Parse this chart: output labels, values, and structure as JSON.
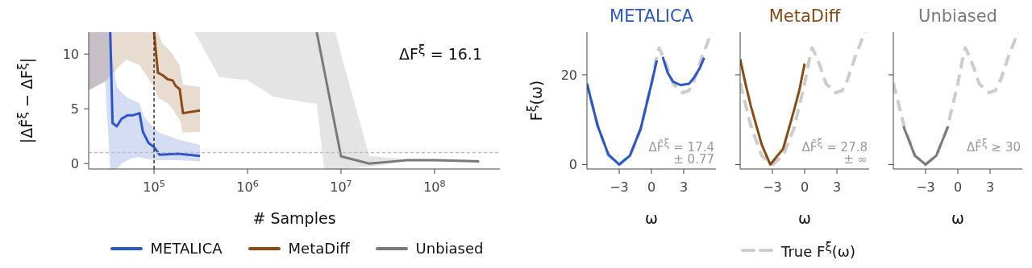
{
  "chart_data": [
    {
      "type": "line",
      "xlabel": "# Samples",
      "ylabel": "|ΔF̂$^{ξ}$ − ΔF$^{ξ}$|",
      "log": "x",
      "xlim": [
        20000,
        500000000
      ],
      "xticks": [
        {
          "value": 100000,
          "label": "10$^{5}$"
        },
        {
          "value": 1000000,
          "label": "10$^{6}$"
        },
        {
          "value": 10000000,
          "label": "10$^{7}$"
        },
        {
          "value": 100000000,
          "label": "10$^{8}$"
        }
      ],
      "ylim": [
        -0.5,
        12
      ],
      "yticks": [
        0,
        5,
        10
      ],
      "legend": "bottom",
      "annotations": [
        "ΔF$^{ξ}$ = 16.1"
      ],
      "ref_lines": [
        {
          "axis": "x",
          "value": 100000,
          "color": "#333333",
          "line_style": "dashed"
        },
        {
          "axis": "y",
          "value": 1,
          "color": "#bbbbbb",
          "line_style": "dashed"
        }
      ],
      "series": [
        {
          "name": "METALICA",
          "color": "#2b56c9",
          "x": [
            20000,
            30000,
            34000,
            36000,
            40000,
            45000,
            52000,
            59000,
            70000,
            76000,
            87000,
            100000,
            115000,
            180000,
            310000
          ],
          "values": [
            null,
            null,
            12,
            3.7,
            3.4,
            4.1,
            4.4,
            4.4,
            4.6,
            2.9,
            1.9,
            1.5,
            0.8,
            0.9,
            0.7
          ],
          "lower": [
            6.7,
            7.5,
            -0.5,
            -0.5,
            -0.5,
            0,
            0.3,
            0.5,
            0.6,
            0.5,
            0.4,
            0.3,
            0.3,
            0.3,
            0.2
          ],
          "upper": [
            12,
            12,
            12,
            9.5,
            7,
            6.5,
            6,
            5.8,
            5.5,
            4.5,
            3.8,
            3.2,
            2.8,
            2.2,
            1.7
          ]
        },
        {
          "name": "MetaDiff",
          "color": "#8b4a13",
          "x": [
            20000,
            30000,
            50000,
            70000,
            100000,
            110000,
            122000,
            140000,
            158000,
            170000,
            188000,
            204000,
            310000
          ],
          "values": [
            null,
            null,
            null,
            null,
            12,
            8.3,
            8.1,
            7.7,
            7.6,
            7.1,
            6.8,
            4.6,
            4.85
          ],
          "lower": [
            6.7,
            7.5,
            9.5,
            9,
            7,
            6,
            5.8,
            5.5,
            5,
            4.5,
            4,
            2.8,
            2.9
          ],
          "upper": [
            12,
            12,
            12,
            12,
            12,
            12,
            11,
            10.5,
            10,
            9.5,
            9,
            7.2,
            7
          ]
        },
        {
          "name": "Unbiased",
          "color": "#7a7a7a",
          "x": [
            270000,
            500000,
            1000000,
            1900000,
            5000000,
            5500000,
            6600000,
            8700000,
            10000000,
            20000000,
            50000000,
            100000000,
            300000000
          ],
          "values": [
            null,
            null,
            null,
            null,
            null,
            12,
            null,
            null,
            0.66,
            0,
            0.3,
            0.3,
            0.2
          ],
          "lower": [
            12,
            7.9,
            7.6,
            6.1,
            5.5,
            5.5,
            -0.5,
            -0.5,
            -0.5,
            -0.3,
            0.2,
            0.2,
            0.1
          ],
          "upper": [
            12,
            12,
            12,
            12,
            12,
            12,
            12,
            12,
            10,
            0.7,
            0.4,
            0.4,
            0.3
          ]
        }
      ]
    },
    {
      "type": "line",
      "title": "METALICA",
      "xlabel": "ω",
      "ylabel": "F$^{ξ}$(ω)",
      "xlim": [
        -6,
        6
      ],
      "xticks": [
        {
          "value": -3,
          "label": "−3"
        },
        {
          "value": 0,
          "label": "0"
        },
        {
          "value": 3,
          "label": "3"
        }
      ],
      "ylim": [
        -1,
        29.5
      ],
      "yticks": [
        0,
        20
      ],
      "annotations": [
        "ΔF̂$^{ξ}$ = 17.4\n± 0.77"
      ],
      "series": [
        {
          "color": "#cccccc",
          "line_style": "dashed",
          "x": [
            -6,
            -5,
            -4,
            -3,
            -2,
            -1,
            0,
            0.4,
            0.7,
            1.2,
            2,
            2.9,
            3.5,
            4,
            4.7,
            5.6
          ],
          "values": [
            18.2,
            8.6,
            2,
            0,
            2,
            8,
            18,
            23,
            26,
            23.5,
            18,
            16,
            16.5,
            19,
            24,
            29.5
          ]
        },
        {
          "color": "#2b56c9",
          "x": [
            -6,
            -5,
            -4,
            -3,
            -2,
            -1,
            0,
            0.5,
            0.8,
            1.05,
            1.5,
            2,
            2.7,
            3.5,
            4,
            4.5,
            4.9
          ],
          "values": [
            18,
            8.6,
            2.2,
            0,
            2,
            8,
            18,
            23.2,
            null,
            24,
            20.5,
            18.5,
            17.7,
            18,
            19.5,
            21.5,
            23.8
          ]
        }
      ]
    },
    {
      "type": "line",
      "title": "MetaDiff",
      "xlabel": "ω",
      "xlim": [
        -6,
        6
      ],
      "xticks": [
        {
          "value": -3,
          "label": "−3"
        },
        {
          "value": 0,
          "label": "0"
        },
        {
          "value": 3,
          "label": "3"
        }
      ],
      "ylim": [
        -1,
        29.5
      ],
      "yticks": [
        0,
        20
      ],
      "tick_labels": "x",
      "legend": "bottom",
      "annotations": [
        "ΔF̂$^{ξ}$ = 27.8\n± ∞"
      ],
      "series": [
        {
          "name": "True F$^{ξ}$(ω)",
          "color": "#cccccc",
          "line_style": "dashed",
          "x": [
            -6,
            -5,
            -4,
            -3,
            -2,
            -1,
            0,
            0.4,
            0.7,
            1.2,
            2,
            2.9,
            3.5,
            4,
            4.7,
            5.6
          ],
          "values": [
            18.2,
            8.6,
            2,
            0,
            2,
            8,
            18,
            23,
            26,
            23.5,
            18,
            16,
            16.5,
            19,
            24,
            29.5
          ]
        },
        {
          "color": "#8b4a13",
          "x": [
            -6,
            -5.5,
            -5,
            -4,
            -3.2,
            -2,
            -1,
            -0.5,
            0
          ],
          "values": [
            23.5,
            18,
            13,
            4.5,
            0,
            3.5,
            12,
            16.5,
            22.5
          ]
        }
      ]
    },
    {
      "type": "line",
      "title": "Unbiased",
      "xlabel": "ω",
      "xlim": [
        -6,
        6
      ],
      "xticks": [
        {
          "value": -3,
          "label": "−3"
        },
        {
          "value": 0,
          "label": "0"
        },
        {
          "value": 3,
          "label": "3"
        }
      ],
      "ylim": [
        -1,
        29.5
      ],
      "yticks": [
        0,
        20
      ],
      "tick_labels": "x",
      "annotations": [
        "ΔF̂$^{ξ}$ ≥ 30"
      ],
      "series": [
        {
          "color": "#cccccc",
          "line_style": "dashed",
          "x": [
            -6,
            -5,
            -4,
            -3,
            -2,
            -1,
            0,
            0.4,
            0.7,
            1.2,
            2,
            2.9,
            3.5,
            4,
            4.7,
            5.6
          ],
          "values": [
            18.2,
            8.6,
            2,
            0,
            2,
            8,
            18,
            23,
            26,
            23.5,
            18,
            16,
            16.5,
            19,
            24,
            29.5
          ]
        },
        {
          "color": "#7a7a7a",
          "x": [
            -5.06,
            -4,
            -3,
            -2,
            -0.9
          ],
          "values": [
            8.5,
            2,
            0,
            2,
            8.5
          ]
        }
      ]
    }
  ]
}
